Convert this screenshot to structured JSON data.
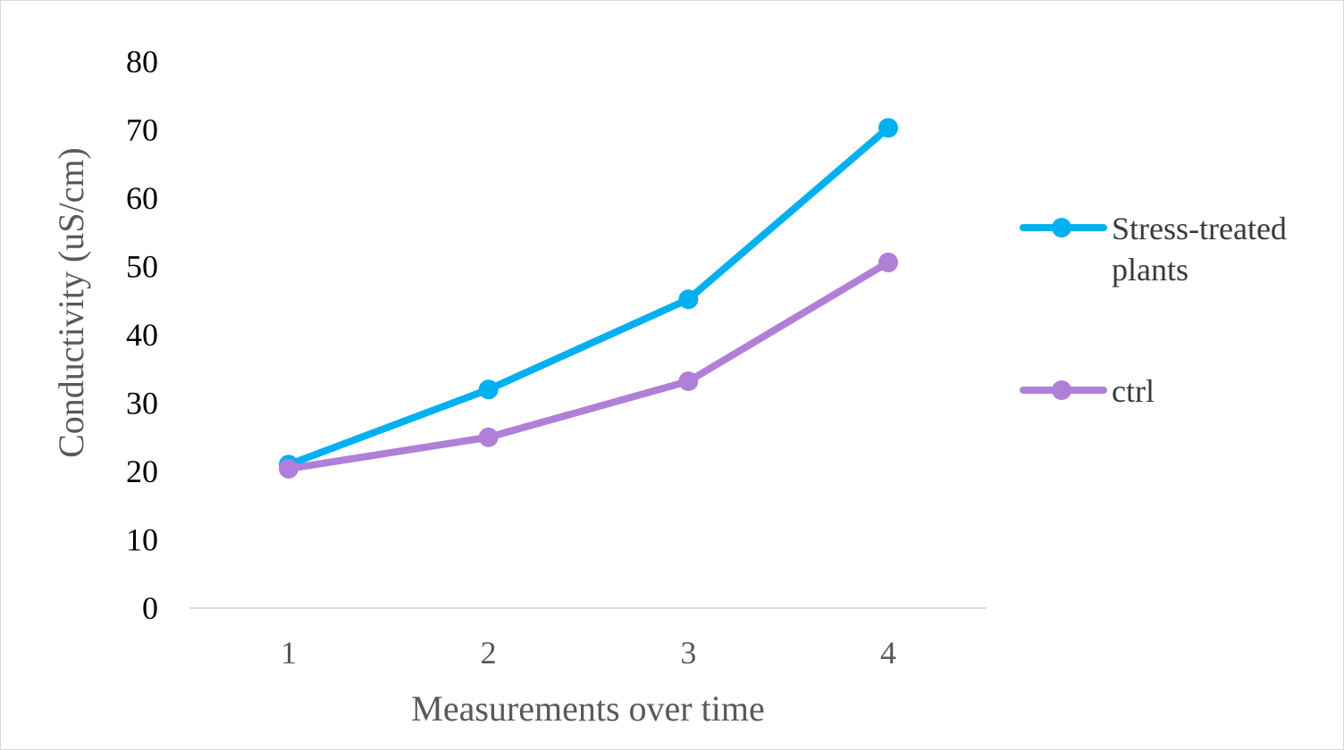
{
  "chart_data": {
    "type": "line",
    "title": "",
    "xlabel": "Measurements over time",
    "ylabel": "Conductivity  (uS/cm)",
    "categories": [
      "1",
      "2",
      "3",
      "4"
    ],
    "ylim": [
      0,
      80
    ],
    "yticks": [
      "0",
      "10",
      "20",
      "30",
      "40",
      "50",
      "60",
      "70",
      "80"
    ],
    "grid": false,
    "legend_position": "right",
    "series": [
      {
        "name": "Stress-treated plants",
        "name_lines": [
          "Stress-treated",
          "plants"
        ],
        "values": [
          21,
          32,
          45.2,
          70.3
        ],
        "color": "#00b0f0"
      },
      {
        "name": "ctrl",
        "name_lines": [
          "ctrl"
        ],
        "values": [
          20.4,
          25,
          33.2,
          50.6
        ],
        "color": "#b07fd8"
      }
    ]
  }
}
